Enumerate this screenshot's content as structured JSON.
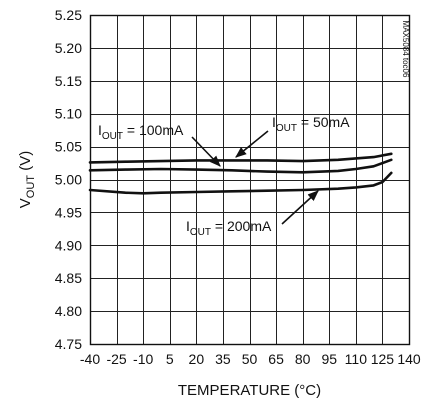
{
  "chart_data": {
    "type": "line",
    "xlabel": "TEMPERATURE (°C)",
    "ylabel": {
      "main": "V",
      "sub": "OUT",
      "tail": " (V)"
    },
    "xlim": [
      -40,
      140
    ],
    "ylim": [
      4.75,
      5.25
    ],
    "x_ticks": [
      -40,
      -25,
      -10,
      5,
      20,
      35,
      50,
      65,
      80,
      95,
      110,
      125,
      140
    ],
    "y_ticks": [
      4.75,
      4.8,
      4.85,
      4.9,
      4.95,
      5.0,
      5.05,
      5.1,
      5.15,
      5.2,
      5.25
    ],
    "x_tick_labels": [
      "-40",
      "-25",
      "-10",
      "5",
      "20",
      "35",
      "50",
      "65",
      "80",
      "95",
      "110",
      "125",
      "140"
    ],
    "y_tick_labels": [
      "4.75",
      "4.80",
      "4.85",
      "4.90",
      "4.95",
      "5.00",
      "5.05",
      "5.10",
      "5.15",
      "5.20",
      "5.25"
    ],
    "grid": true,
    "side_note": "MAX5084 toc06",
    "series": [
      {
        "name": "I_OUT = 50mA",
        "label": {
          "main": "I",
          "sub": "OUT",
          "tail": " = 50mA"
        },
        "x": [
          -40,
          -20,
          0,
          20,
          40,
          60,
          80,
          100,
          110,
          120,
          130
        ],
        "y": [
          5.026,
          5.027,
          5.028,
          5.029,
          5.029,
          5.029,
          5.028,
          5.03,
          5.032,
          5.034,
          5.039
        ]
      },
      {
        "name": "I_OUT = 100mA",
        "label": {
          "main": "I",
          "sub": "OUT",
          "tail": " = 100mA"
        },
        "x": [
          -40,
          -20,
          0,
          20,
          40,
          60,
          80,
          100,
          110,
          120,
          130
        ],
        "y": [
          5.014,
          5.015,
          5.016,
          5.015,
          5.014,
          5.012,
          5.011,
          5.013,
          5.016,
          5.02,
          5.03
        ]
      },
      {
        "name": "I_OUT = 200mA",
        "label": {
          "main": "I",
          "sub": "OUT",
          "tail": " = 200mA"
        },
        "x": [
          -40,
          -20,
          -10,
          0,
          20,
          40,
          60,
          80,
          100,
          110,
          120,
          125,
          130
        ],
        "y": [
          4.984,
          4.98,
          4.979,
          4.98,
          4.981,
          4.982,
          4.983,
          4.984,
          4.986,
          4.988,
          4.991,
          4.996,
          5.01
        ]
      }
    ]
  }
}
